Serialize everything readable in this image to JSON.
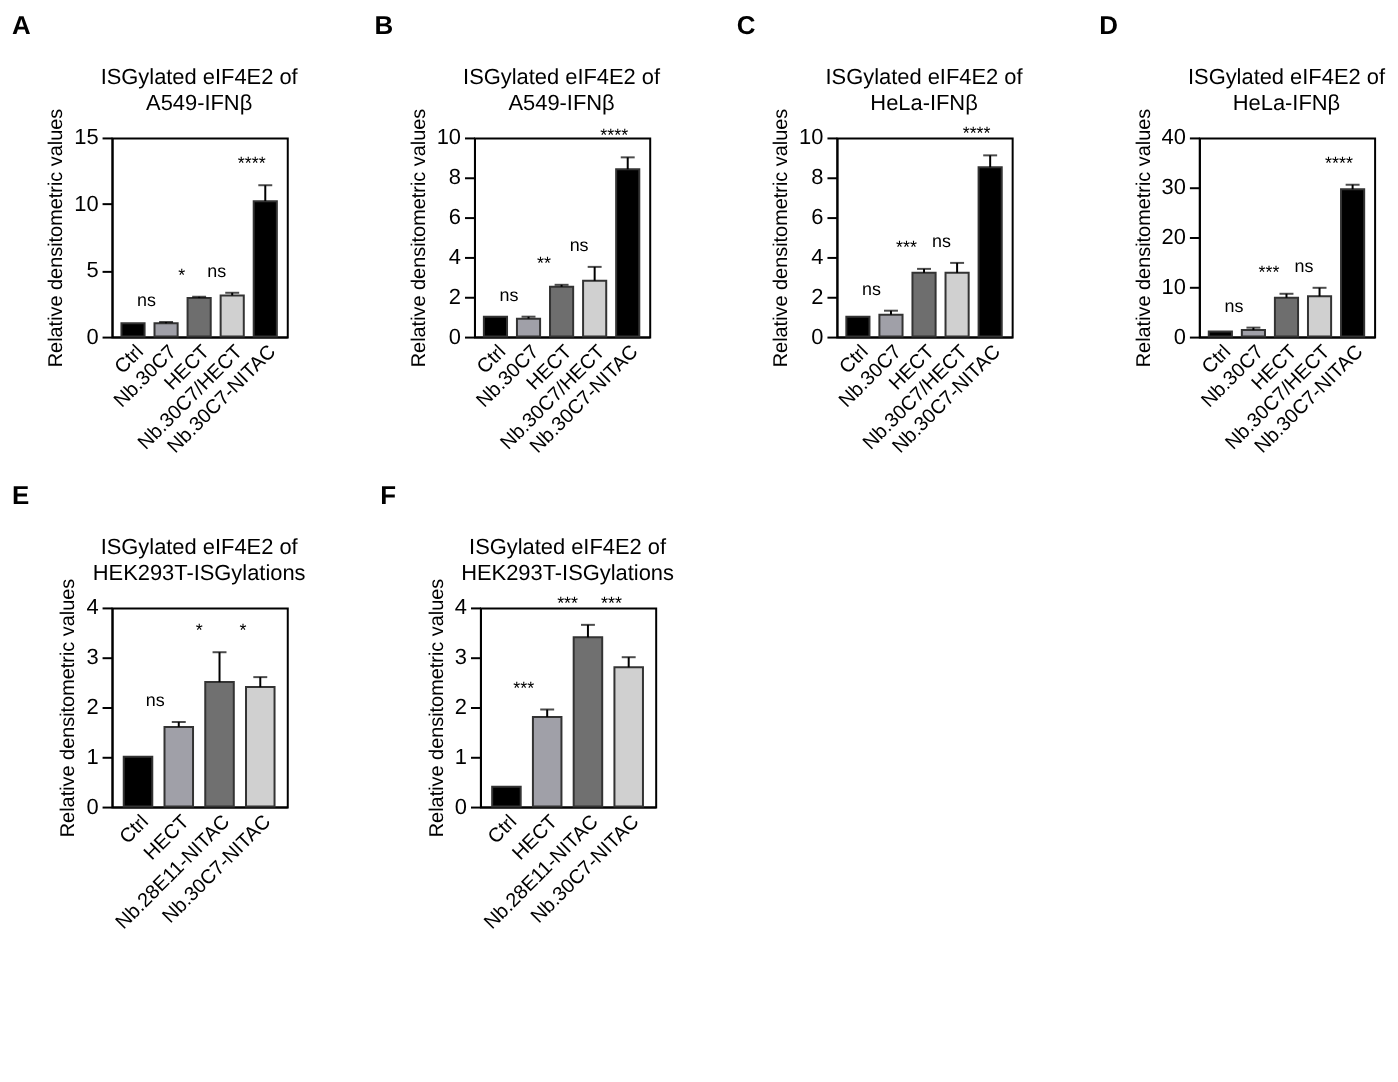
{
  "chart_data": [
    {
      "type": "bar",
      "title": "ISGylated eIF4E2 of\nA549-IFNβ",
      "ylabel": "Relative densitometric values",
      "categories": [
        "Ctrl",
        "Nb.30C7",
        "HECT",
        "Nb.30C7/HECT",
        "Nb.30C7-NITAC"
      ],
      "values": [
        1.0,
        1.0,
        2.9,
        3.1,
        10.2
      ],
      "errors": [
        null,
        0.1,
        0.1,
        0.2,
        1.2
      ],
      "colors": [
        "#000000",
        "#a0a0a8",
        "#6e6e6e",
        "#d0d0d0",
        "#000000"
      ],
      "ylim": [
        0,
        15
      ],
      "yticks": [
        0,
        5,
        10,
        15
      ],
      "annotations": [
        "A",
        "ns",
        "*",
        "ns",
        "****"
      ]
    },
    {
      "type": "bar",
      "title": "ISGylated eIF4E2 of\nA549-IFNβ",
      "ylabel": "Relative densitometric values",
      "categories": [
        "Ctrl",
        "Nb.30C7",
        "HECT",
        "Nb.30C7/HECT",
        "Nb.30C7-NITAC"
      ],
      "values": [
        1.0,
        0.9,
        2.5,
        2.8,
        8.4
      ],
      "errors": [
        null,
        0.1,
        0.1,
        0.7,
        0.6
      ],
      "colors": [
        "#000000",
        "#a0a0a8",
        "#6e6e6e",
        "#d0d0d0",
        "#000000"
      ],
      "ylim": [
        0,
        10
      ],
      "yticks": [
        0,
        2,
        4,
        6,
        8,
        10
      ],
      "annotations": [
        "B",
        "ns",
        "**",
        "ns",
        "****"
      ]
    },
    {
      "type": "bar",
      "title": "ISGylated eIF4E2 of\nHeLa-IFNβ",
      "ylabel": "Relative densitometric values",
      "categories": [
        "Ctrl",
        "Nb.30C7",
        "HECT",
        "Nb.30C7/HECT",
        "Nb.30C7-NITAC"
      ],
      "values": [
        1.0,
        1.1,
        3.2,
        3.2,
        8.5
      ],
      "errors": [
        null,
        0.2,
        0.2,
        0.5,
        0.6
      ],
      "colors": [
        "#000000",
        "#a0a0a8",
        "#6e6e6e",
        "#d0d0d0",
        "#000000"
      ],
      "ylim": [
        0,
        10
      ],
      "yticks": [
        0,
        2,
        4,
        6,
        8,
        10
      ],
      "annotations": [
        "C",
        "ns",
        "***",
        "ns",
        "****"
      ]
    },
    {
      "type": "bar",
      "title": "ISGylated eIF4E2 of\nHeLa-IFNβ",
      "ylabel": "Relative densitometric values",
      "categories": [
        "Ctrl",
        "Nb.30C7",
        "HECT",
        "Nb.30C7/HECT",
        "Nb.30C7-NITAC"
      ],
      "values": [
        1.0,
        1.3,
        7.8,
        8.1,
        29.6
      ],
      "errors": [
        null,
        0.5,
        0.8,
        1.7,
        0.9
      ],
      "colors": [
        "#000000",
        "#a0a0a8",
        "#6e6e6e",
        "#d0d0d0",
        "#000000"
      ],
      "ylim": [
        0,
        40
      ],
      "yticks": [
        0,
        10,
        20,
        30,
        40
      ],
      "annotations": [
        "D",
        "ns",
        "***",
        "ns",
        "****"
      ]
    },
    {
      "type": "bar",
      "title": "ISGylated eIF4E2 of\nHEK293T-ISGylations",
      "ylabel": "Relative densitometric values",
      "categories": [
        "Ctrl",
        "HECT",
        "Nb.28E11-NITAC",
        "Nb.30C7-NITAC"
      ],
      "values": [
        1.0,
        1.6,
        2.5,
        2.4
      ],
      "errors": [
        null,
        0.1,
        0.6,
        0.2
      ],
      "colors": [
        "#000000",
        "#a0a0a8",
        "#707070",
        "#d0d0d0"
      ],
      "ylim": [
        0,
        4
      ],
      "yticks": [
        0,
        1,
        2,
        3,
        4
      ],
      "annotations": [
        "E",
        "ns",
        "*",
        "*"
      ]
    },
    {
      "type": "bar",
      "title": "ISGylated eIF4E2 of\nHEK293T-ISGylations",
      "ylabel": "Relative densitometric values",
      "categories": [
        "Ctrl",
        "HECT",
        "Nb.28E11-NITAC",
        "Nb.30C7-NITAC"
      ],
      "values": [
        0.4,
        1.8,
        3.4,
        2.8
      ],
      "errors": [
        null,
        0.15,
        0.25,
        0.2
      ],
      "colors": [
        "#000000",
        "#a0a0a8",
        "#707070",
        "#d0d0d0"
      ],
      "ylim": [
        0,
        4
      ],
      "yticks": [
        0,
        1,
        2,
        3,
        4
      ],
      "annotations": [
        "F",
        "***",
        "***",
        "***"
      ]
    }
  ]
}
